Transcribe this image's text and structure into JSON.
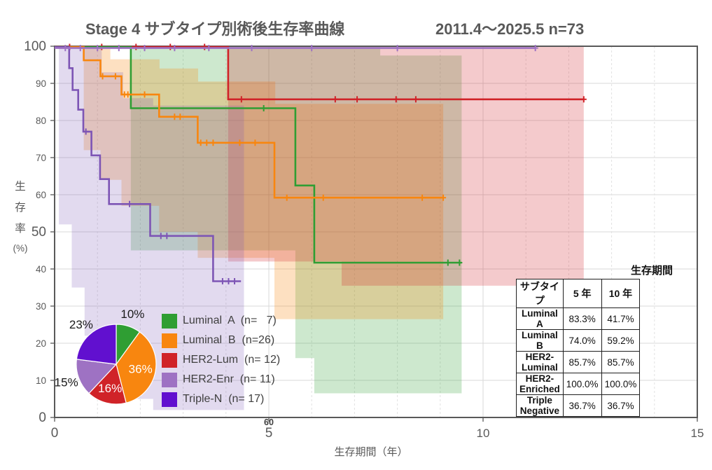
{
  "title": {
    "main": "Stage 4 サブタイプ別術後生存率曲線",
    "sub": "2011.4～2025.5 n=73"
  },
  "axes": {
    "x": {
      "title": "生存期間（年）",
      "range": [
        0,
        15
      ],
      "ticks": [
        {
          "t": 0,
          "label": "0",
          "size": 19
        },
        {
          "t": 5,
          "label": "5",
          "size": 19
        },
        {
          "t": 10,
          "label": "10",
          "size": 17
        },
        {
          "t": 15,
          "label": "15",
          "size": 17
        }
      ],
      "secondary_tick": {
        "t": 5,
        "label": "60"
      }
    },
    "y": {
      "title": "生存率",
      "unit": "(%)",
      "range": [
        0,
        100
      ],
      "ticks": [
        0,
        10,
        20,
        30,
        40,
        50,
        60,
        70,
        80,
        90,
        100
      ],
      "major_ticks": [
        0,
        50,
        100
      ]
    }
  },
  "chart_data": {
    "type": "line",
    "subtype": "kaplan-meier-step",
    "title": "Stage 4 サブタイプ別術後生存率曲線",
    "period": "2011.4～2025.5",
    "total_n": 73,
    "xlabel": "生存期間（年）",
    "ylabel": "生存率(%)",
    "xlim": [
      0,
      15
    ],
    "ylim": [
      0,
      100
    ],
    "grid": true,
    "series": [
      {
        "name": "Luminal A",
        "n": 7,
        "color": "#2f9e33",
        "top_offset": 1.2,
        "five_year": 83.3,
        "ten_year": 41.7,
        "steps": [
          [
            0,
            100
          ],
          [
            1.78,
            83.3
          ],
          [
            5.62,
            62.5
          ],
          [
            6.06,
            41.7
          ]
        ],
        "end": 9.5,
        "censors": [
          [
            4.88,
            83.3
          ],
          [
            9.18,
            41.7
          ],
          [
            9.45,
            41.7
          ]
        ],
        "ci_opacity": 0.24,
        "ci": [
          [
            1.78,
            100
          ],
          [
            7.6,
            100
          ],
          [
            7.6,
            97.5
          ],
          [
            9.5,
            97.5
          ],
          [
            9.5,
            6.5
          ],
          [
            6.06,
            6.5
          ],
          [
            6.06,
            16
          ],
          [
            5.62,
            16
          ],
          [
            5.62,
            45
          ],
          [
            1.78,
            45
          ]
        ]
      },
      {
        "name": "Luminal B",
        "n": 26,
        "color": "#f8860f",
        "top_offset": 1.2,
        "five_year": 74.0,
        "ten_year": 59.2,
        "steps": [
          [
            0,
            100
          ],
          [
            0.68,
            96.2
          ],
          [
            1.07,
            91.9
          ],
          [
            1.56,
            87.0
          ],
          [
            2.44,
            81.0
          ],
          [
            3.34,
            74.0
          ],
          [
            5.13,
            59.2
          ]
        ],
        "end": 9.07,
        "censors": [
          [
            1.12,
            91.9
          ],
          [
            1.42,
            91.9
          ],
          [
            1.63,
            87.0
          ],
          [
            1.71,
            87.0
          ],
          [
            2.1,
            87.0
          ],
          [
            2.8,
            81.0
          ],
          [
            2.93,
            81.0
          ],
          [
            3.41,
            74.0
          ],
          [
            3.55,
            74.0
          ],
          [
            3.7,
            74.0
          ],
          [
            4.32,
            74.0
          ],
          [
            4.68,
            74.0
          ],
          [
            5.42,
            59.2
          ],
          [
            6.27,
            59.2
          ],
          [
            8.58,
            59.2
          ],
          [
            9.07,
            59.2
          ]
        ],
        "ci_opacity": 0.26,
        "ci": [
          [
            0.68,
            100
          ],
          [
            1.3,
            100
          ],
          [
            1.3,
            96.5
          ],
          [
            2.45,
            96.5
          ],
          [
            2.45,
            94
          ],
          [
            3.35,
            94
          ],
          [
            3.35,
            90.5
          ],
          [
            5.15,
            90.5
          ],
          [
            5.15,
            84.5
          ],
          [
            9.07,
            84.5
          ],
          [
            9.07,
            26.5
          ],
          [
            5.13,
            26.5
          ],
          [
            5.13,
            43
          ],
          [
            3.34,
            43
          ],
          [
            3.34,
            50
          ],
          [
            2.44,
            50
          ],
          [
            2.44,
            57
          ],
          [
            1.56,
            57
          ],
          [
            1.56,
            64
          ],
          [
            1.07,
            64
          ],
          [
            1.07,
            72
          ],
          [
            0.68,
            72
          ]
        ]
      },
      {
        "name": "HER2-Lum",
        "n": 12,
        "color": "#d02328",
        "top_offset": 1.0,
        "five_year": 85.7,
        "ten_year": 85.7,
        "steps": [
          [
            0,
            100
          ],
          [
            4.05,
            85.7
          ]
        ],
        "end": 12.35,
        "censors": [
          [
            0.35,
            100
          ],
          [
            1.1,
            100
          ],
          [
            1.9,
            100
          ],
          [
            2.7,
            100
          ],
          [
            3.5,
            100
          ],
          [
            4.36,
            85.7
          ],
          [
            6.55,
            85.7
          ],
          [
            7.06,
            85.7
          ],
          [
            7.97,
            85.7
          ],
          [
            8.43,
            85.7
          ],
          [
            12.35,
            85.7
          ]
        ],
        "ci_opacity": 0.24,
        "ci": [
          [
            4.05,
            100
          ],
          [
            12.35,
            100
          ],
          [
            12.35,
            35.5
          ],
          [
            6.7,
            35.5
          ],
          [
            6.7,
            42
          ],
          [
            4.05,
            42
          ]
        ]
      },
      {
        "name": "HER2-Enr",
        "n": 11,
        "color": "#9e72c3",
        "top_offset": 2.6,
        "five_year": 100.0,
        "ten_year": 100.0,
        "steps": [
          [
            0,
            100
          ]
        ],
        "end": 11.22,
        "censors": [
          [
            0.25,
            100
          ],
          [
            0.6,
            100
          ],
          [
            1.0,
            100
          ],
          [
            1.5,
            100
          ],
          [
            2.1,
            100
          ],
          [
            2.8,
            100
          ],
          [
            3.6,
            100
          ],
          [
            4.6,
            100
          ],
          [
            6.0,
            100
          ],
          [
            8.0,
            100
          ],
          [
            11.22,
            100
          ]
        ],
        "ci_opacity": 0,
        "ci": []
      },
      {
        "name": "Triple-N",
        "n": 17,
        "color": "#7d55b5",
        "accent_color": "#6110cf",
        "top_offset": 1.2,
        "five_year": 36.7,
        "ten_year": 36.7,
        "steps": [
          [
            0,
            100
          ],
          [
            0.34,
            94.1
          ],
          [
            0.42,
            88.2
          ],
          [
            0.55,
            82.9
          ],
          [
            0.67,
            77.0
          ],
          [
            0.86,
            70.6
          ],
          [
            1.06,
            64.2
          ],
          [
            1.27,
            57.5
          ],
          [
            2.23,
            48.9
          ],
          [
            3.7,
            36.7
          ]
        ],
        "end": 4.35,
        "censors": [
          [
            0.73,
            77.0
          ],
          [
            1.75,
            57.5
          ],
          [
            2.48,
            48.9
          ],
          [
            2.62,
            48.9
          ],
          [
            3.92,
            36.7
          ],
          [
            4.06,
            36.7
          ],
          [
            4.2,
            36.7
          ]
        ],
        "ci_opacity": 0.22,
        "ci": [
          [
            0.1,
            100
          ],
          [
            1.1,
            100
          ],
          [
            1.1,
            93
          ],
          [
            1.6,
            93
          ],
          [
            1.6,
            86
          ],
          [
            2.3,
            86
          ],
          [
            2.3,
            84
          ],
          [
            4.42,
            84
          ],
          [
            4.42,
            2
          ],
          [
            2.3,
            2
          ],
          [
            2.3,
            5
          ],
          [
            1.6,
            5
          ],
          [
            1.6,
            12
          ],
          [
            1.1,
            12
          ],
          [
            1.1,
            22
          ],
          [
            0.7,
            22
          ],
          [
            0.7,
            35
          ],
          [
            0.4,
            35
          ],
          [
            0.4,
            52
          ],
          [
            0.1,
            52
          ]
        ]
      }
    ],
    "pie": {
      "slices": [
        {
          "label": "Luminal A",
          "pct": 10,
          "color": "#2f9e33",
          "label_text": "10%",
          "label_inside": false
        },
        {
          "label": "Luminal B",
          "pct": 36,
          "color": "#f8860f",
          "label_text": "36%",
          "label_inside": true
        },
        {
          "label": "HER2-Lum",
          "pct": 16,
          "color": "#d02328",
          "label_text": "16%",
          "label_inside": true
        },
        {
          "label": "HER2-Enr",
          "pct": 15,
          "color": "#9e72c3",
          "label_text": "15%",
          "label_inside": false
        },
        {
          "label": "Triple-N",
          "pct": 23,
          "color": "#6110cf",
          "label_text": "23%",
          "label_inside": false
        }
      ]
    }
  },
  "legend": {
    "items": [
      {
        "name": "Luminal  A",
        "count": "(n=   7)",
        "color": "#2f9e33"
      },
      {
        "name": "Luminal  B",
        "count": "(n=26)",
        "color": "#f8860f"
      },
      {
        "name": "HER2-Lum",
        "count": "(n= 12)",
        "color": "#d02328"
      },
      {
        "name": "HER2-Enr",
        "count": "(n= 11)",
        "color": "#9e72c3"
      },
      {
        "name": "Triple-N",
        "count": "(n= 17)",
        "color": "#6110cf"
      }
    ]
  },
  "table": {
    "caption": "生存期間",
    "headers": [
      "サブタイプ",
      "5 年",
      "10 年"
    ],
    "rows": [
      [
        "Luminal A",
        "83.3%",
        "41.7%"
      ],
      [
        "Luminal B",
        "74.0%",
        "59.2%"
      ],
      [
        "HER2-Luminal",
        "85.7%",
        "85.7%"
      ],
      [
        "HER2-Enriched",
        "100.0%",
        "100.0%"
      ],
      [
        "Triple Negative",
        "36.7%",
        "36.7%"
      ]
    ]
  },
  "colors": {
    "text_gray": "#595959",
    "grid": "#d9d9d9",
    "border": "#595959"
  }
}
